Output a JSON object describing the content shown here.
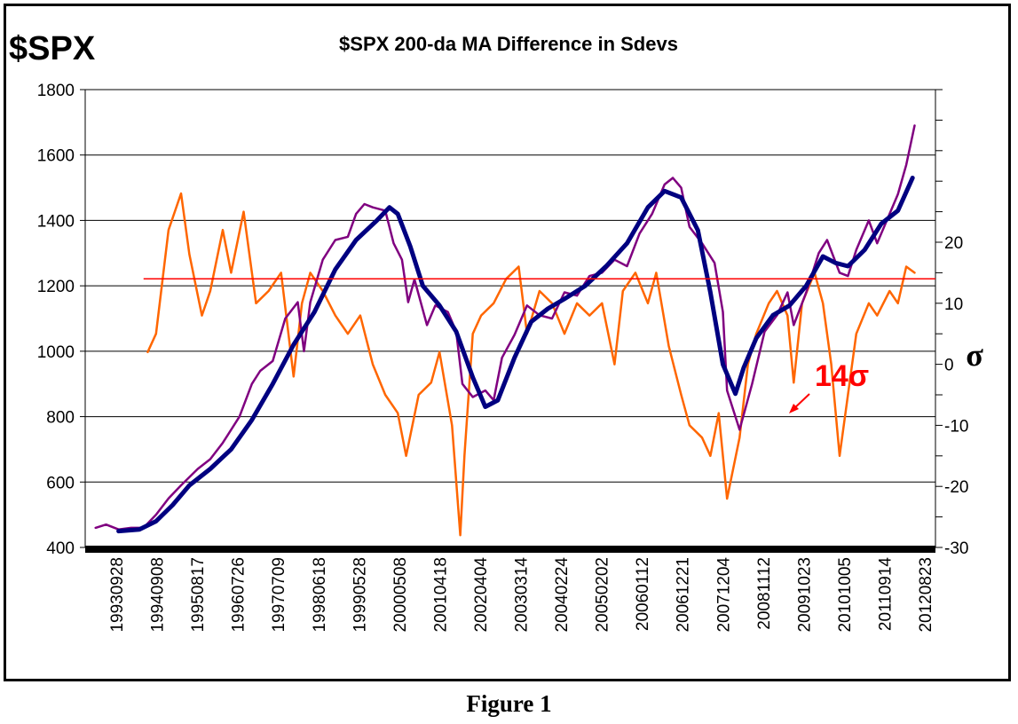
{
  "caption": "Figure 1",
  "colors": {
    "price": "#800080",
    "moving_average": "#000080",
    "sdev": "#FF6600",
    "threshold": "#FF0000",
    "plot_bottom_band": "#000000"
  },
  "chart_data": {
    "type": "line",
    "corner_label": "$SPX",
    "title": "$SPX 200-da MA Difference in Sdevs",
    "left_axis": {
      "ylim": [
        400,
        1800
      ],
      "ticks": [
        400,
        600,
        800,
        1000,
        1200,
        1400,
        1600,
        1800
      ]
    },
    "right_axis": {
      "label": "σ",
      "ylim": [
        -30,
        45
      ],
      "ticks": [
        -30,
        -20,
        -10,
        0,
        10,
        20
      ]
    },
    "x_tick_labels": [
      "19930928",
      "19940908",
      "19950817",
      "19960726",
      "19970709",
      "19980618",
      "19990528",
      "20000508",
      "20010418",
      "20020404",
      "20030314",
      "20040224",
      "20050202",
      "20060112",
      "20061221",
      "20071204",
      "20081112",
      "20091023",
      "20101005",
      "20110914",
      "20120823"
    ],
    "grid": "horizontal",
    "annotation": {
      "text": "14σ",
      "value": 14
    },
    "series": [
      {
        "axis": "left",
        "x": [
          1993.75,
          1994.0,
          1994.3,
          1994.6,
          1994.9,
          1995.2,
          1995.5,
          1995.8,
          1996.2,
          1996.5,
          1996.8,
          1997.2,
          1997.5,
          1997.7,
          1998.0,
          1998.3,
          1998.6,
          1998.75,
          1998.9,
          1999.2,
          1999.5,
          1999.8,
          2000.0,
          2000.2,
          2000.4,
          2000.7,
          2000.9,
          2001.1,
          2001.25,
          2001.4,
          2001.7,
          2001.9,
          2002.2,
          2002.4,
          2002.55,
          2002.8,
          2003.1,
          2003.3,
          2003.5,
          2003.8,
          2004.1,
          2004.4,
          2004.7,
          2005.0,
          2005.3,
          2005.6,
          2005.9,
          2006.2,
          2006.5,
          2006.8,
          2007.1,
          2007.4,
          2007.6,
          2007.8,
          2008.0,
          2008.3,
          2008.6,
          2008.8,
          2008.9,
          2009.2,
          2009.5,
          2009.8,
          2010.1,
          2010.35,
          2010.5,
          2010.8,
          2011.1,
          2011.3,
          2011.6,
          2011.8,
          2012.0,
          2012.3,
          2012.5,
          2012.8,
          2013.0,
          2013.2,
          2013.4
        ],
        "values": [
          460,
          470,
          455,
          460,
          460,
          500,
          550,
          590,
          640,
          670,
          720,
          800,
          900,
          940,
          970,
          1100,
          1150,
          1000,
          1150,
          1280,
          1340,
          1350,
          1420,
          1450,
          1440,
          1430,
          1330,
          1280,
          1150,
          1220,
          1080,
          1140,
          1120,
          1060,
          900,
          860,
          880,
          850,
          980,
          1050,
          1140,
          1110,
          1100,
          1180,
          1170,
          1230,
          1240,
          1280,
          1260,
          1360,
          1420,
          1510,
          1530,
          1500,
          1380,
          1330,
          1270,
          1120,
          880,
          760,
          900,
          1060,
          1110,
          1180,
          1080,
          1180,
          1300,
          1340,
          1240,
          1230,
          1310,
          1400,
          1330,
          1420,
          1480,
          1570,
          1690
        ]
      },
      {
        "axis": "left",
        "x": [
          1994.3,
          1994.8,
          1995.2,
          1995.6,
          1996.0,
          1996.5,
          1997.0,
          1997.5,
          1998.0,
          1998.5,
          1999.0,
          1999.5,
          2000.0,
          2000.5,
          2000.8,
          2001.0,
          2001.3,
          2001.6,
          2002.0,
          2002.4,
          2002.8,
          2003.1,
          2003.4,
          2003.8,
          2004.2,
          2004.6,
          2005.0,
          2005.5,
          2006.0,
          2006.5,
          2007.0,
          2007.4,
          2007.8,
          2008.2,
          2008.5,
          2008.8,
          2009.1,
          2009.3,
          2009.6,
          2010.0,
          2010.4,
          2010.8,
          2011.2,
          2011.5,
          2011.8,
          2012.2,
          2012.6,
          2013.0,
          2013.35
        ],
        "values": [
          450,
          455,
          480,
          530,
          590,
          640,
          700,
          790,
          900,
          1020,
          1120,
          1250,
          1340,
          1400,
          1440,
          1420,
          1320,
          1200,
          1140,
          1060,
          920,
          830,
          850,
          980,
          1090,
          1130,
          1160,
          1200,
          1260,
          1330,
          1440,
          1490,
          1470,
          1370,
          1180,
          960,
          870,
          950,
          1040,
          1110,
          1140,
          1200,
          1290,
          1270,
          1260,
          1310,
          1390,
          1430,
          1530
        ]
      },
      {
        "axis": "right",
        "x": [
          1995.0,
          1995.2,
          1995.5,
          1995.8,
          1996.0,
          1996.3,
          1996.5,
          1996.8,
          1997.0,
          1997.3,
          1997.6,
          1997.9,
          1998.2,
          1998.5,
          1998.7,
          1998.9,
          1999.2,
          1999.5,
          1999.8,
          2000.1,
          2000.4,
          2000.7,
          2001.0,
          2001.2,
          2001.5,
          2001.8,
          2002.0,
          2002.3,
          2002.5,
          2002.6,
          2002.8,
          2003.0,
          2003.3,
          2003.6,
          2003.9,
          2004.1,
          2004.4,
          2004.7,
          2005.0,
          2005.3,
          2005.6,
          2005.9,
          2006.2,
          2006.4,
          2006.7,
          2007.0,
          2007.2,
          2007.5,
          2007.8,
          2008.0,
          2008.3,
          2008.5,
          2008.7,
          2008.9,
          2009.2,
          2009.4,
          2009.6,
          2009.9,
          2010.1,
          2010.35,
          2010.5,
          2010.7,
          2011.0,
          2011.2,
          2011.4,
          2011.6,
          2011.8,
          2012.0,
          2012.3,
          2012.5,
          2012.8,
          2013.0,
          2013.2,
          2013.4
        ],
        "values": [
          2,
          5,
          22,
          28,
          18,
          8,
          12,
          22,
          15,
          25,
          10,
          12,
          15,
          -2,
          10,
          15,
          12,
          8,
          5,
          8,
          0,
          -5,
          -8,
          -15,
          -5,
          -3,
          2,
          -10,
          -28,
          -15,
          5,
          8,
          10,
          14,
          16,
          5,
          12,
          10,
          5,
          10,
          8,
          10,
          0,
          12,
          15,
          10,
          15,
          3,
          -5,
          -10,
          -12,
          -15,
          -8,
          -22,
          -12,
          0,
          5,
          10,
          12,
          8,
          -3,
          10,
          15,
          10,
          0,
          -15,
          -5,
          5,
          10,
          8,
          12,
          10,
          16,
          15
        ]
      }
    ]
  }
}
